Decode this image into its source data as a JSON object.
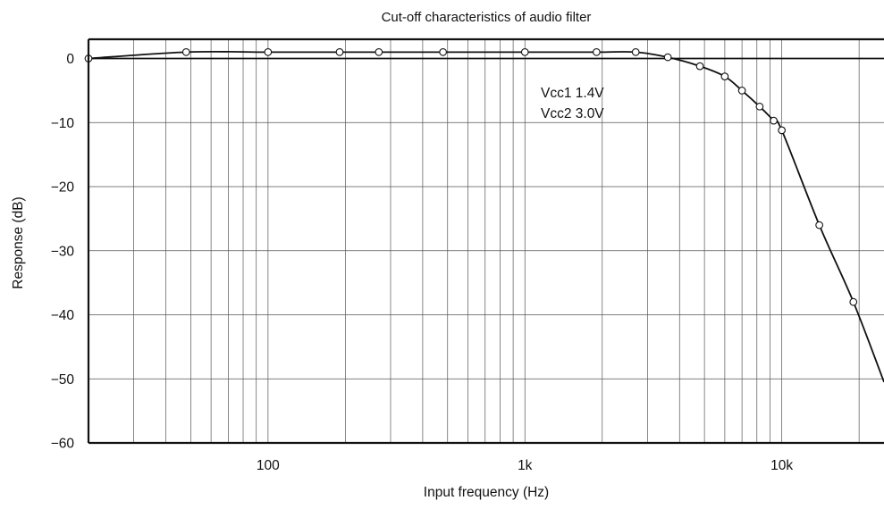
{
  "chart_data": {
    "type": "line",
    "title": "Cut-off characteristics of audio filter",
    "xlabel": "Input frequency (Hz)",
    "ylabel": "Response (dB)",
    "x_scale": "log",
    "xlim": [
      20,
      25000
    ],
    "ylim": [
      -60,
      3
    ],
    "x_tick_values": [
      100,
      1000,
      10000
    ],
    "x_tick_labels": [
      "100",
      "1k",
      "10k"
    ],
    "y_tick_values": [
      0,
      -10,
      -20,
      -30,
      -40,
      -50,
      -60
    ],
    "y_tick_labels": [
      "0",
      "−10",
      "−20",
      "−30",
      "−40",
      "−50",
      "−60"
    ],
    "grid": true,
    "annotations": [
      "Vcc1  1.4V",
      "Vcc2  3.0V"
    ],
    "series": [
      {
        "x": [
          20,
          48,
          100,
          190,
          270,
          480,
          1000,
          1900,
          2700,
          3600,
          4800,
          6000,
          7000,
          8200,
          9300,
          10000,
          14000,
          19000,
          25000
        ],
        "y": [
          0,
          1.0,
          1.0,
          1.0,
          1.0,
          1.0,
          1.0,
          1.0,
          1.0,
          0.2,
          -1.2,
          -2.8,
          -5.0,
          -7.5,
          -9.7,
          -11.2,
          -26.0,
          -38.0,
          -50.5
        ],
        "markers": [
          true,
          true,
          true,
          true,
          true,
          true,
          true,
          true,
          true,
          true,
          true,
          true,
          true,
          true,
          true,
          true,
          true,
          true,
          false
        ]
      },
      {
        "x": [
          20,
          25000
        ],
        "y": [
          0,
          0
        ],
        "markers": [
          false,
          false
        ]
      }
    ]
  }
}
